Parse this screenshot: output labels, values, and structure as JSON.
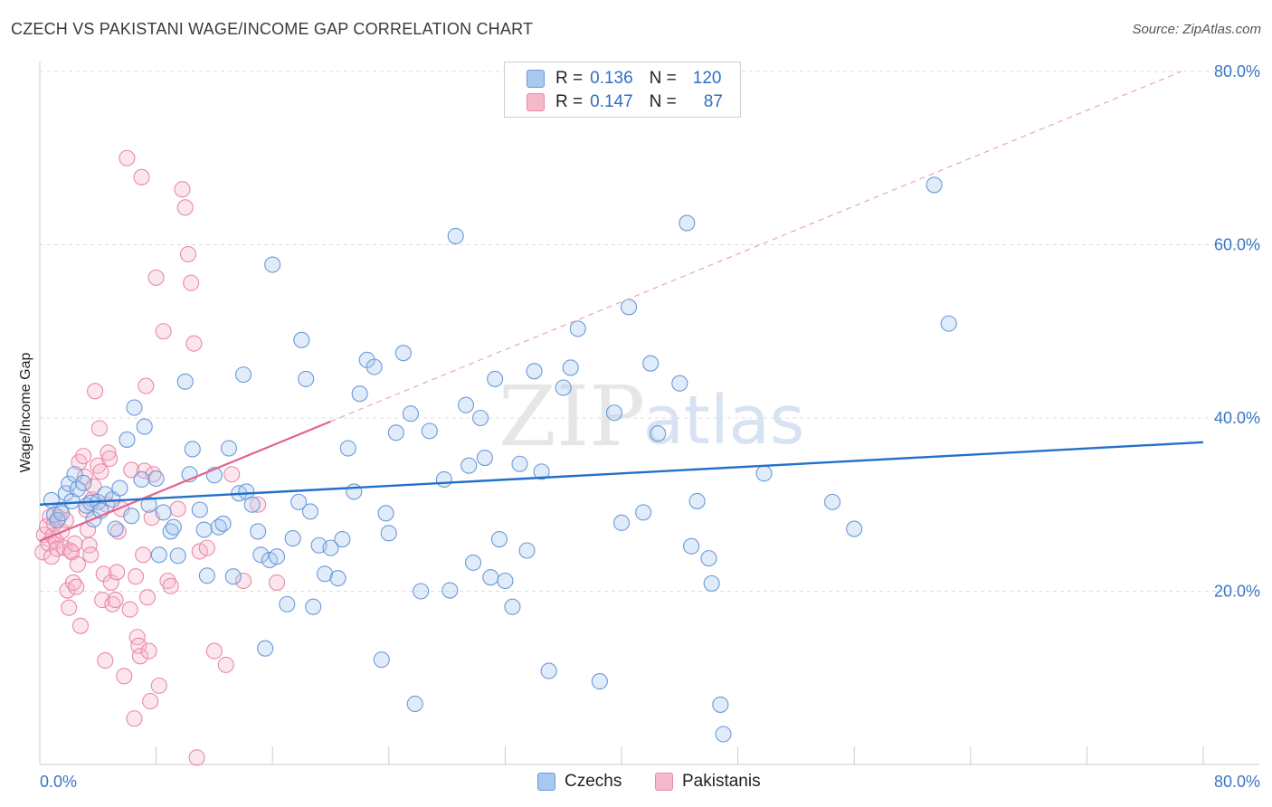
{
  "title": "CZECH VS PAKISTANI WAGE/INCOME GAP CORRELATION CHART",
  "source": "Source: ZipAtlas.com",
  "watermark": {
    "zip": "ZIP",
    "atlas": "atlas"
  },
  "legend_stats": {
    "czechs": {
      "r_label": "R =",
      "r_value": "0.136",
      "n_label": "N =",
      "n_value": "120"
    },
    "pakistanis": {
      "r_label": "R =",
      "r_value": "0.147",
      "n_label": "N =",
      "n_value": "87"
    }
  },
  "colors": {
    "czechs_fill": "#a9c8f0",
    "czechs_stroke": "#6a9ad8",
    "czechs_line": "#2370c9",
    "pakistanis_fill": "#f6b8cb",
    "pakistanis_stroke": "#e98aa8",
    "pakistanis_line": "#e5628e",
    "grid": "#dddddd",
    "tick_label": "#3a76c4"
  },
  "chart_data": {
    "type": "scatter",
    "title": "CZECH VS PAKISTANI WAGE/INCOME GAP CORRELATION CHART",
    "xlabel": "",
    "ylabel": "Wage/Income Gap",
    "xlim": [
      0,
      80
    ],
    "ylim": [
      0,
      80
    ],
    "x_tick_labels": [
      "0.0%",
      "80.0%"
    ],
    "y_tick_labels": [
      "20.0%",
      "40.0%",
      "60.0%",
      "80.0%"
    ],
    "y_ticks": [
      20,
      40,
      60,
      80
    ],
    "grid": true,
    "legend_placement": "bottom",
    "series": [
      {
        "name": "Czechs",
        "trend": {
          "x": [
            0,
            80
          ],
          "y": [
            30.0,
            37.2
          ]
        },
        "points": [
          [
            0.8,
            30.5
          ],
          [
            1.0,
            28.8
          ],
          [
            1.2,
            28.2
          ],
          [
            1.5,
            29.0
          ],
          [
            1.8,
            31.3
          ],
          [
            2.0,
            32.4
          ],
          [
            2.2,
            30.4
          ],
          [
            2.4,
            33.5
          ],
          [
            2.6,
            31.8
          ],
          [
            3.0,
            32.5
          ],
          [
            3.2,
            29.9
          ],
          [
            3.5,
            30.2
          ],
          [
            3.7,
            28.3
          ],
          [
            4.0,
            30.3
          ],
          [
            4.2,
            29.3
          ],
          [
            4.5,
            31.2
          ],
          [
            5.0,
            30.6
          ],
          [
            5.2,
            27.2
          ],
          [
            5.5,
            31.9
          ],
          [
            6.0,
            37.5
          ],
          [
            6.3,
            28.7
          ],
          [
            6.5,
            41.2
          ],
          [
            7.0,
            32.9
          ],
          [
            7.2,
            39.0
          ],
          [
            7.5,
            30.0
          ],
          [
            8.0,
            33.0
          ],
          [
            8.2,
            24.2
          ],
          [
            8.5,
            29.1
          ],
          [
            9.0,
            26.9
          ],
          [
            9.2,
            27.4
          ],
          [
            9.5,
            24.1
          ],
          [
            10.0,
            44.2
          ],
          [
            10.3,
            33.5
          ],
          [
            10.5,
            36.4
          ],
          [
            11.0,
            29.4
          ],
          [
            11.3,
            27.1
          ],
          [
            11.5,
            21.8
          ],
          [
            12.0,
            33.4
          ],
          [
            12.3,
            27.4
          ],
          [
            12.6,
            27.8
          ],
          [
            13.0,
            36.5
          ],
          [
            13.3,
            21.7
          ],
          [
            13.7,
            31.3
          ],
          [
            14.0,
            45.0
          ],
          [
            14.2,
            31.5
          ],
          [
            14.6,
            30.0
          ],
          [
            15.0,
            26.9
          ],
          [
            15.2,
            24.2
          ],
          [
            15.5,
            13.4
          ],
          [
            15.8,
            23.6
          ],
          [
            16.0,
            57.7
          ],
          [
            16.3,
            24.0
          ],
          [
            17.0,
            18.5
          ],
          [
            17.4,
            26.1
          ],
          [
            17.8,
            30.3
          ],
          [
            18.0,
            49.0
          ],
          [
            18.3,
            44.5
          ],
          [
            18.6,
            29.2
          ],
          [
            18.8,
            18.2
          ],
          [
            19.2,
            25.3
          ],
          [
            19.6,
            22.0
          ],
          [
            20.0,
            25.0
          ],
          [
            20.5,
            21.5
          ],
          [
            20.8,
            26.0
          ],
          [
            21.2,
            36.5
          ],
          [
            21.6,
            31.5
          ],
          [
            22.0,
            42.8
          ],
          [
            22.5,
            46.7
          ],
          [
            23.0,
            45.9
          ],
          [
            23.5,
            12.1
          ],
          [
            23.8,
            29.0
          ],
          [
            24.0,
            26.7
          ],
          [
            24.5,
            38.3
          ],
          [
            25.0,
            47.5
          ],
          [
            25.5,
            40.5
          ],
          [
            25.8,
            7.0
          ],
          [
            26.2,
            20.0
          ],
          [
            26.8,
            38.5
          ],
          [
            27.8,
            32.9
          ],
          [
            28.2,
            20.1
          ],
          [
            28.6,
            61.0
          ],
          [
            29.3,
            41.5
          ],
          [
            29.5,
            34.5
          ],
          [
            29.8,
            23.3
          ],
          [
            30.3,
            40.0
          ],
          [
            30.6,
            35.4
          ],
          [
            31.0,
            21.6
          ],
          [
            31.3,
            44.5
          ],
          [
            31.6,
            26.0
          ],
          [
            32.0,
            21.2
          ],
          [
            32.5,
            18.2
          ],
          [
            33.0,
            34.7
          ],
          [
            33.5,
            24.7
          ],
          [
            34.0,
            45.4
          ],
          [
            34.5,
            33.8
          ],
          [
            35.0,
            10.8
          ],
          [
            36.0,
            43.5
          ],
          [
            36.5,
            45.8
          ],
          [
            37.0,
            50.3
          ],
          [
            38.5,
            9.6
          ],
          [
            39.5,
            40.6
          ],
          [
            40.0,
            27.9
          ],
          [
            40.5,
            52.8
          ],
          [
            41.5,
            29.1
          ],
          [
            42.0,
            46.3
          ],
          [
            42.5,
            38.2
          ],
          [
            44.0,
            44.0
          ],
          [
            44.5,
            62.5
          ],
          [
            44.8,
            25.2
          ],
          [
            45.2,
            30.4
          ],
          [
            46.0,
            23.8
          ],
          [
            46.2,
            20.9
          ],
          [
            46.8,
            6.9
          ],
          [
            47.0,
            3.5
          ],
          [
            49.8,
            33.6
          ],
          [
            54.5,
            30.3
          ],
          [
            56.0,
            27.2
          ],
          [
            61.5,
            66.9
          ],
          [
            62.5,
            50.9
          ]
        ]
      },
      {
        "name": "Pakistanis",
        "trend": {
          "x": [
            0,
            20
          ],
          "y": [
            25.8,
            39.6
          ]
        },
        "extrapolation": {
          "x": [
            20,
            78.5
          ],
          "y": [
            39.6,
            80.0
          ]
        },
        "points": [
          [
            0.2,
            24.5
          ],
          [
            0.3,
            26.5
          ],
          [
            0.5,
            27.5
          ],
          [
            0.6,
            25.5
          ],
          [
            0.7,
            28.6
          ],
          [
            0.8,
            24.0
          ],
          [
            0.9,
            26.4
          ],
          [
            1.0,
            27.8
          ],
          [
            1.1,
            25.8
          ],
          [
            1.2,
            24.9
          ],
          [
            1.3,
            28.5
          ],
          [
            1.4,
            29.4
          ],
          [
            1.5,
            26.9
          ],
          [
            1.7,
            25.0
          ],
          [
            1.8,
            28.2
          ],
          [
            1.9,
            20.1
          ],
          [
            2.0,
            18.1
          ],
          [
            2.1,
            24.7
          ],
          [
            2.2,
            24.5
          ],
          [
            2.3,
            21.0
          ],
          [
            2.4,
            25.5
          ],
          [
            2.5,
            20.5
          ],
          [
            2.6,
            23.1
          ],
          [
            2.7,
            34.9
          ],
          [
            2.8,
            16.0
          ],
          [
            3.0,
            35.6
          ],
          [
            3.1,
            33.2
          ],
          [
            3.2,
            29.4
          ],
          [
            3.3,
            27.1
          ],
          [
            3.4,
            25.3
          ],
          [
            3.5,
            24.2
          ],
          [
            3.6,
            30.6
          ],
          [
            3.7,
            32.1
          ],
          [
            3.8,
            43.1
          ],
          [
            4.0,
            34.5
          ],
          [
            4.1,
            38.8
          ],
          [
            4.2,
            33.8
          ],
          [
            4.3,
            19.0
          ],
          [
            4.4,
            22.0
          ],
          [
            4.5,
            12.0
          ],
          [
            4.6,
            30.0
          ],
          [
            4.7,
            36.0
          ],
          [
            4.8,
            35.3
          ],
          [
            4.9,
            21.0
          ],
          [
            5.0,
            18.5
          ],
          [
            5.2,
            19.0
          ],
          [
            5.3,
            22.2
          ],
          [
            5.4,
            26.9
          ],
          [
            5.6,
            29.5
          ],
          [
            5.8,
            10.2
          ],
          [
            6.0,
            70.0
          ],
          [
            6.2,
            17.9
          ],
          [
            6.3,
            34.0
          ],
          [
            6.5,
            5.3
          ],
          [
            6.6,
            21.7
          ],
          [
            6.7,
            14.7
          ],
          [
            6.8,
            13.7
          ],
          [
            6.9,
            12.5
          ],
          [
            7.0,
            67.8
          ],
          [
            7.1,
            24.2
          ],
          [
            7.2,
            33.9
          ],
          [
            7.3,
            43.7
          ],
          [
            7.4,
            19.3
          ],
          [
            7.5,
            13.1
          ],
          [
            7.6,
            7.3
          ],
          [
            7.7,
            28.5
          ],
          [
            7.8,
            33.5
          ],
          [
            8.0,
            56.2
          ],
          [
            8.2,
            9.1
          ],
          [
            8.5,
            50.0
          ],
          [
            8.8,
            21.2
          ],
          [
            9.0,
            20.6
          ],
          [
            9.5,
            29.5
          ],
          [
            9.8,
            66.4
          ],
          [
            10.0,
            64.3
          ],
          [
            10.2,
            58.9
          ],
          [
            10.4,
            55.6
          ],
          [
            10.6,
            48.6
          ],
          [
            10.8,
            0.8
          ],
          [
            11.0,
            24.6
          ],
          [
            11.5,
            25.0
          ],
          [
            12.0,
            13.1
          ],
          [
            12.8,
            11.5
          ],
          [
            13.2,
            33.5
          ],
          [
            14.0,
            21.2
          ],
          [
            15.0,
            30.0
          ],
          [
            16.3,
            21.0
          ]
        ]
      }
    ]
  }
}
